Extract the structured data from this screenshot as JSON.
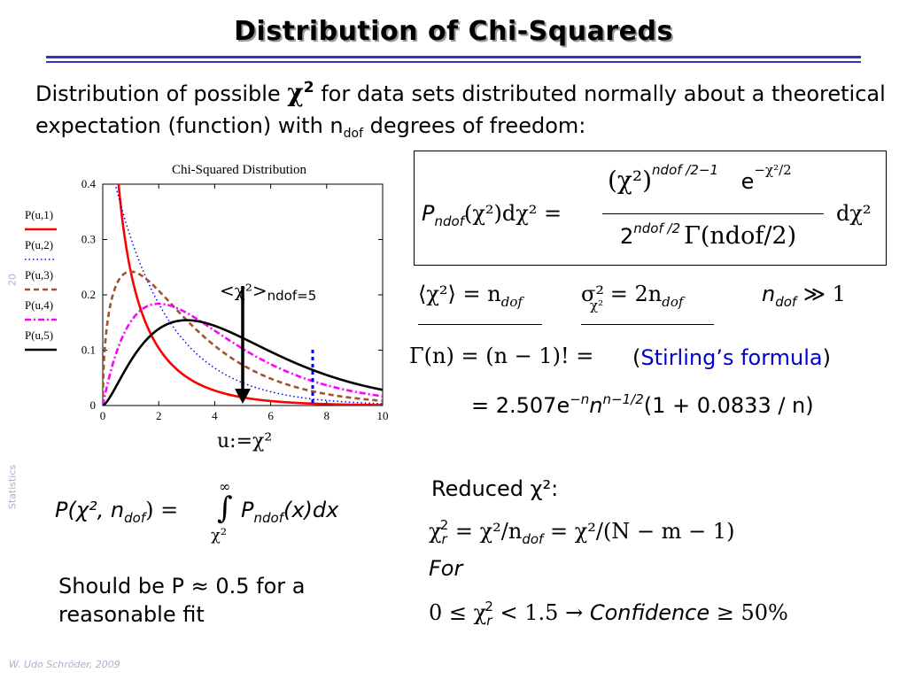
{
  "slide": {
    "title": "Distribution of Chi-Squareds",
    "intro_pre": "Distribution of possible ",
    "intro_chi": "χ",
    "intro_chi_sup": "2",
    "intro_mid": " for data sets distributed normally about a theoretical expectation (function) with n",
    "intro_sub": "dof",
    "intro_post": " degrees of freedom:",
    "side_number": "20",
    "side_label": "Statistics",
    "footer": "W. Udo Schröder, 2009"
  },
  "annotations": {
    "mean_label": "<χ²>",
    "mean_sub": "ndof=5",
    "u_label": "u:=χ²"
  },
  "formulas": {
    "main_lhs": "P",
    "main_lhs_sub": "ndof",
    "main_lhs_rest": "(χ²)dχ²  =",
    "numer_chi": "(χ²)",
    "numer_exp": "ndof /2−1",
    "numer_e": "e",
    "numer_e_exp": "−χ²/2",
    "denom": "2",
    "denom_exp": "ndof /2",
    "denom_gamma": "Γ(ndof/2)",
    "dchi": "dχ²",
    "mean_eq": "⟨χ²⟩ = n",
    "mean_eq_sub": "dof",
    "var_eq": "σ²",
    "var_eq_sub": "χ²",
    "var_eq_rest": " = 2n",
    "var_eq_rest_sub": "dof",
    "ndof_cond": "n",
    "ndof_cond_sub": "dof",
    "ndof_cond_rest": " ≫ 1",
    "gamma_eq": "Γ(n) = (n − 1)! =",
    "stirling_open": "(",
    "stirling": "Stirling’s formula",
    "stirling_close": ")",
    "stirling_eq": "= 2.507e",
    "stirling_e_exp": "−n",
    "stirling_n": "n",
    "stirling_n_exp": "n−1/2",
    "stirling_rest": "(1 + 0.0833 / n)",
    "integral_lhs": "P(χ², n",
    "integral_lhs_sub": "dof",
    "integral_lhs_rest": ") =",
    "integral_upper": "∞",
    "integral_sign": "∫",
    "integral_lower": "χ²",
    "integral_rhs": "P",
    "integral_rhs_sub": "ndof",
    "integral_rhs_rest": "(x)dx",
    "should_be": "Should be P ≈ 0.5 for a reasonable fit",
    "reduced_label": "Reduced χ²:",
    "reduced_eq_lhs": "χ",
    "reduced_eq_sub": "r",
    "reduced_eq_sup": "2",
    "reduced_eq_rhs": " = χ²/n",
    "reduced_eq_rhs_sub": "dof",
    "reduced_eq_rhs2": " = χ²/(N − m − 1)",
    "for_label": "For",
    "conf_lhs": "0 ≤ χ",
    "conf_sub": "r",
    "conf_sup": "2",
    "conf_mid": " < 1.5    →  ",
    "conf_word": "Confidence",
    "conf_rhs": " ≥ 50%"
  },
  "chart_data": {
    "type": "line",
    "title": "Chi-Squared Distribution",
    "xlabel": "",
    "ylabel": "",
    "xlim": [
      0,
      10
    ],
    "ylim": [
      0,
      0.4
    ],
    "x_ticks": [
      0,
      2,
      4,
      6,
      8,
      10
    ],
    "y_ticks": [
      0,
      0.1,
      0.2,
      0.3,
      0.4
    ],
    "grid": false,
    "legend_position": "left-outside",
    "series": [
      {
        "name": "P(u,1)",
        "dof": 1,
        "color": "#ff0000",
        "dash": "solid"
      },
      {
        "name": "P(u,2)",
        "dof": 2,
        "color": "#0000ff",
        "dash": "dotted"
      },
      {
        "name": "P(u,3)",
        "dof": 3,
        "color": "#a0522d",
        "dash": "dashed"
      },
      {
        "name": "P(u,4)",
        "dof": 4,
        "color": "#ff00ff",
        "dash": "dashdot"
      },
      {
        "name": "P(u,5)",
        "dof": 5,
        "color": "#000000",
        "dash": "solid"
      }
    ],
    "markers": [
      {
        "x": 5,
        "kind": "arrow",
        "color": "#000000"
      },
      {
        "x": 7.5,
        "kind": "dotted-line",
        "color": "#0000ff"
      }
    ]
  }
}
